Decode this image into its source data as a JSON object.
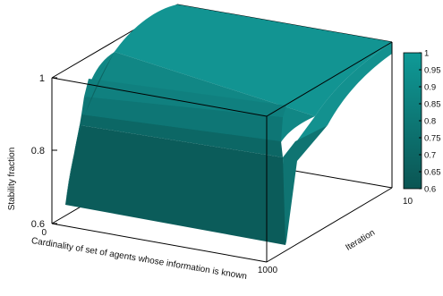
{
  "chart_data": {
    "type": "surface",
    "zlabel": "Stability fraction",
    "xlabel": "Cardinality of set of agents whose information is known",
    "ylabel": "Iteration",
    "x_range": [
      0,
      1000
    ],
    "y_range": [
      0,
      10
    ],
    "zlim": [
      0.6,
      1
    ],
    "x_tick_labels": [
      "0",
      "1000"
    ],
    "y_tick_labels": [
      "10"
    ],
    "z_tick_labels": [
      "0.6",
      "0.8",
      "1"
    ],
    "colorbar": {
      "range": [
        0.6,
        1
      ],
      "tick_labels": [
        "1",
        "0.95",
        "0.9",
        "0.85",
        "0.8",
        "0.75",
        "0.7",
        "0.65",
        "0.6"
      ],
      "low_color": "#0b5553",
      "high_color": "#0f9a97"
    },
    "surface_profile": [
      {
        "x": 0,
        "z_at_iteration_0": 0.65,
        "z_at_iteration_1": 0.88,
        "z_final": 1.0
      },
      {
        "x": 1000,
        "z_at_iteration_0": 0.62,
        "z_at_iteration_1": 0.85,
        "z_final": 1.0
      }
    ],
    "grid": false,
    "colors": {
      "surface_base": "#137473",
      "surface_top": "#139391",
      "frame": "#000000"
    }
  }
}
